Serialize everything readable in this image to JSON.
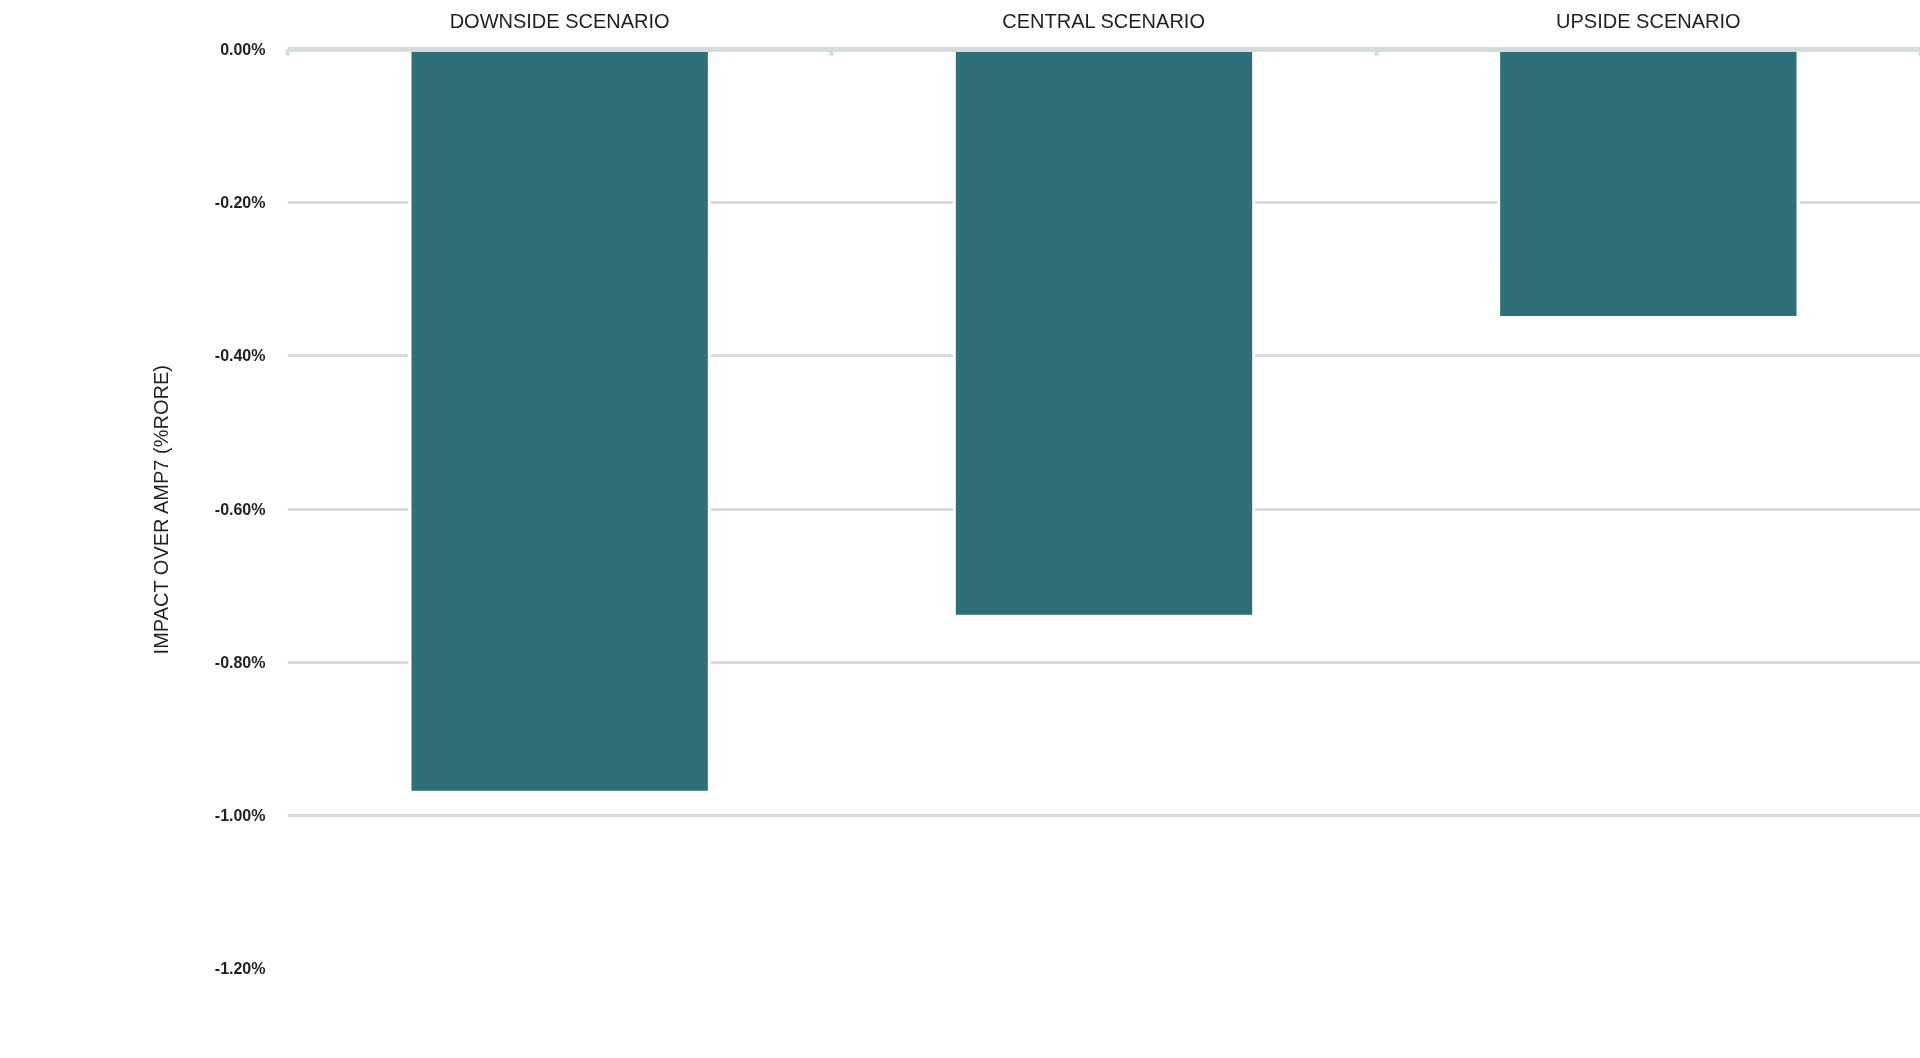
{
  "chart_data": {
    "type": "bar",
    "categories": [
      "DOWNSIDE SCENARIO",
      "CENTRAL SCENARIO",
      "UPSIDE SCENARIO"
    ],
    "values": [
      -0.97,
      -0.74,
      -0.35
    ],
    "color": "#2f6f79",
    "ylabel": "IMPACT OVER AMP7 (%RORE)",
    "ylim": [
      -1.2,
      0
    ],
    "yticks": [
      {
        "value": 0,
        "label": "0.00%"
      },
      {
        "value": -0.2,
        "label": "-0.20%"
      },
      {
        "value": -0.4,
        "label": "-0.40%"
      },
      {
        "value": -0.6,
        "label": "-0.60%"
      },
      {
        "value": -0.8,
        "label": "-0.80%"
      },
      {
        "value": -1.0,
        "label": "-1.00%"
      },
      {
        "value": -1.2,
        "label": "-1.20%"
      }
    ],
    "grid": "y"
  }
}
